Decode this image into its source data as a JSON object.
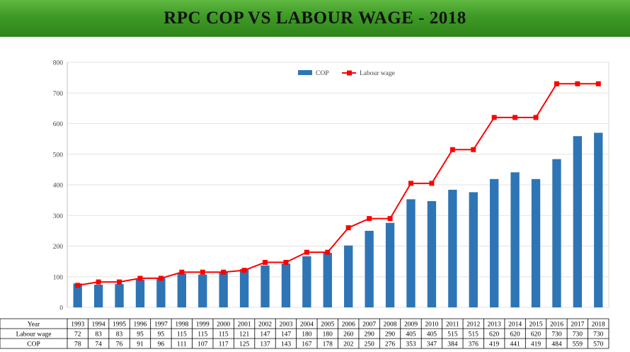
{
  "title": "RPC COP VS LABOUR WAGE - 2018",
  "chart_data": {
    "type": "bar",
    "years": [
      "1993",
      "1994",
      "1995",
      "1996",
      "1997",
      "1998",
      "1999",
      "2000",
      "2001",
      "2002",
      "2003",
      "2004",
      "2005",
      "2006",
      "2007",
      "2008",
      "2009",
      "2010",
      "2011",
      "2012",
      "2013",
      "2014",
      "2015",
      "2016",
      "2017",
      "2018"
    ],
    "series": [
      {
        "name": "COP",
        "type": "bar",
        "color": "#2e75b6",
        "values": [
          78,
          74,
          76,
          91,
          96,
          111,
          107,
          117,
          125,
          137,
          143,
          167,
          178,
          202,
          250,
          276,
          353,
          347,
          384,
          376,
          419,
          441,
          419,
          484,
          559,
          570
        ]
      },
      {
        "name": "Labour wage",
        "type": "line",
        "color": "#ff0000",
        "values": [
          72,
          83,
          83,
          95,
          95,
          115,
          115,
          115,
          121,
          147,
          147,
          180,
          180,
          260,
          290,
          290,
          405,
          405,
          515,
          515,
          620,
          620,
          620,
          730,
          730,
          730
        ]
      }
    ],
    "ylim": [
      0,
      800
    ],
    "yticks": [
      0,
      100,
      200,
      300,
      400,
      500,
      600,
      700,
      800
    ],
    "legend_position": "top-center",
    "grid": true,
    "table": {
      "header_label": "Year",
      "rows": [
        {
          "label": "Labour wage",
          "series": "Labour wage"
        },
        {
          "label": "COP",
          "series": "COP"
        }
      ]
    }
  }
}
